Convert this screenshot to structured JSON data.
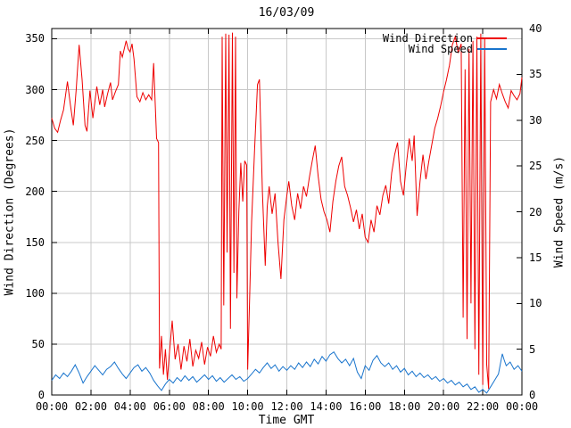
{
  "chart_data": {
    "type": "line",
    "title": "16/03/09",
    "xlabel": "Time GMT",
    "ylabel_left": "Wind Direction (Degrees)",
    "ylabel_right": "Wind Speed (m/s)",
    "xlim_hours": [
      0,
      24
    ],
    "ylim_left": [
      0,
      360
    ],
    "ylim_right": [
      0,
      40
    ],
    "grid": true,
    "legend_position": "top-right-inside",
    "grid_color": "#c8c8c8",
    "border_color": "#000000",
    "x_ticks": {
      "hours": [
        0,
        2,
        4,
        6,
        8,
        10,
        12,
        14,
        16,
        18,
        20,
        22,
        24
      ],
      "labels": [
        "00:00",
        "02:00",
        "04:00",
        "06:00",
        "08:00",
        "10:00",
        "12:00",
        "14:00",
        "16:00",
        "18:00",
        "20:00",
        "22:00",
        "00:00"
      ]
    },
    "y_ticks_left": [
      0,
      50,
      100,
      150,
      200,
      250,
      300,
      350
    ],
    "y_ticks_right": [
      0,
      5,
      10,
      15,
      20,
      25,
      30,
      35,
      40
    ],
    "series": [
      {
        "name": "Wind Direction",
        "axis": "left",
        "unit": "degrees",
        "color": "#ee0000",
        "points": [
          [
            0.0,
            272
          ],
          [
            0.15,
            262
          ],
          [
            0.3,
            258
          ],
          [
            0.45,
            270
          ],
          [
            0.6,
            280
          ],
          [
            0.8,
            308
          ],
          [
            0.95,
            285
          ],
          [
            1.1,
            265
          ],
          [
            1.25,
            300
          ],
          [
            1.4,
            344
          ],
          [
            1.55,
            310
          ],
          [
            1.7,
            265
          ],
          [
            1.8,
            259
          ],
          [
            1.95,
            299
          ],
          [
            2.1,
            272
          ],
          [
            2.3,
            303
          ],
          [
            2.45,
            285
          ],
          [
            2.6,
            300
          ],
          [
            2.7,
            283
          ],
          [
            2.85,
            296
          ],
          [
            3.0,
            307
          ],
          [
            3.1,
            290
          ],
          [
            3.25,
            298
          ],
          [
            3.4,
            305
          ],
          [
            3.5,
            338
          ],
          [
            3.6,
            332
          ],
          [
            3.8,
            348
          ],
          [
            3.9,
            340
          ],
          [
            4.0,
            337
          ],
          [
            4.1,
            345
          ],
          [
            4.2,
            330
          ],
          [
            4.35,
            293
          ],
          [
            4.5,
            288
          ],
          [
            4.65,
            297
          ],
          [
            4.8,
            290
          ],
          [
            4.95,
            295
          ],
          [
            5.1,
            290
          ],
          [
            5.2,
            326
          ],
          [
            5.35,
            252
          ],
          [
            5.45,
            248
          ],
          [
            5.5,
            26
          ],
          [
            5.6,
            58
          ],
          [
            5.7,
            20
          ],
          [
            5.8,
            45
          ],
          [
            5.9,
            15
          ],
          [
            6.0,
            40
          ],
          [
            6.15,
            73
          ],
          [
            6.3,
            35
          ],
          [
            6.45,
            50
          ],
          [
            6.6,
            25
          ],
          [
            6.75,
            48
          ],
          [
            6.9,
            33
          ],
          [
            7.05,
            55
          ],
          [
            7.2,
            28
          ],
          [
            7.35,
            44
          ],
          [
            7.5,
            36
          ],
          [
            7.65,
            52
          ],
          [
            7.8,
            30
          ],
          [
            7.95,
            47
          ],
          [
            8.1,
            38
          ],
          [
            8.25,
            58
          ],
          [
            8.4,
            42
          ],
          [
            8.55,
            50
          ],
          [
            8.65,
            45
          ],
          [
            8.7,
            352
          ],
          [
            8.78,
            88
          ],
          [
            8.88,
            355
          ],
          [
            8.95,
            140
          ],
          [
            9.05,
            354
          ],
          [
            9.12,
            65
          ],
          [
            9.22,
            356
          ],
          [
            9.3,
            120
          ],
          [
            9.38,
            352
          ],
          [
            9.45,
            95
          ],
          [
            9.55,
            180
          ],
          [
            9.65,
            228
          ],
          [
            9.75,
            190
          ],
          [
            9.85,
            230
          ],
          [
            9.95,
            226
          ],
          [
            10.0,
            25
          ],
          [
            10.1,
            95
          ],
          [
            10.2,
            170
          ],
          [
            10.35,
            240
          ],
          [
            10.5,
            305
          ],
          [
            10.6,
            310
          ],
          [
            10.75,
            200
          ],
          [
            10.9,
            127
          ],
          [
            11.0,
            185
          ],
          [
            11.1,
            205
          ],
          [
            11.25,
            178
          ],
          [
            11.4,
            198
          ],
          [
            11.55,
            150
          ],
          [
            11.7,
            114
          ],
          [
            11.85,
            172
          ],
          [
            12.0,
            196
          ],
          [
            12.1,
            210
          ],
          [
            12.25,
            186
          ],
          [
            12.4,
            172
          ],
          [
            12.55,
            198
          ],
          [
            12.7,
            183
          ],
          [
            12.85,
            205
          ],
          [
            13.0,
            195
          ],
          [
            13.15,
            214
          ],
          [
            13.3,
            230
          ],
          [
            13.45,
            245
          ],
          [
            13.6,
            215
          ],
          [
            13.75,
            192
          ],
          [
            13.9,
            180
          ],
          [
            14.05,
            172
          ],
          [
            14.2,
            160
          ],
          [
            14.35,
            190
          ],
          [
            14.5,
            210
          ],
          [
            14.65,
            225
          ],
          [
            14.8,
            234
          ],
          [
            14.95,
            205
          ],
          [
            15.1,
            196
          ],
          [
            15.25,
            184
          ],
          [
            15.4,
            170
          ],
          [
            15.55,
            182
          ],
          [
            15.7,
            163
          ],
          [
            15.85,
            178
          ],
          [
            16.0,
            155
          ],
          [
            16.15,
            150
          ],
          [
            16.3,
            172
          ],
          [
            16.45,
            160
          ],
          [
            16.6,
            186
          ],
          [
            16.75,
            177
          ],
          [
            16.9,
            196
          ],
          [
            17.05,
            206
          ],
          [
            17.2,
            188
          ],
          [
            17.35,
            218
          ],
          [
            17.5,
            236
          ],
          [
            17.65,
            248
          ],
          [
            17.8,
            210
          ],
          [
            17.95,
            196
          ],
          [
            18.1,
            226
          ],
          [
            18.25,
            252
          ],
          [
            18.4,
            230
          ],
          [
            18.5,
            255
          ],
          [
            18.65,
            176
          ],
          [
            18.8,
            210
          ],
          [
            18.95,
            236
          ],
          [
            19.1,
            212
          ],
          [
            19.25,
            230
          ],
          [
            19.4,
            246
          ],
          [
            19.55,
            262
          ],
          [
            19.7,
            272
          ],
          [
            19.85,
            284
          ],
          [
            20.0,
            298
          ],
          [
            20.15,
            310
          ],
          [
            20.3,
            324
          ],
          [
            20.45,
            344
          ],
          [
            20.6,
            352
          ],
          [
            20.75,
            336
          ],
          [
            20.9,
            345
          ],
          [
            21.0,
            76
          ],
          [
            21.1,
            320
          ],
          [
            21.2,
            55
          ],
          [
            21.3,
            340
          ],
          [
            21.4,
            90
          ],
          [
            21.5,
            348
          ],
          [
            21.6,
            45
          ],
          [
            21.7,
            352
          ],
          [
            21.8,
            20
          ],
          [
            21.9,
            355
          ],
          [
            22.0,
            10
          ],
          [
            22.1,
            350
          ],
          [
            22.2,
            30
          ],
          [
            22.3,
            6
          ],
          [
            22.4,
            288
          ],
          [
            22.55,
            300
          ],
          [
            22.7,
            291
          ],
          [
            22.85,
            305
          ],
          [
            23.0,
            296
          ],
          [
            23.15,
            288
          ],
          [
            23.3,
            282
          ],
          [
            23.45,
            299
          ],
          [
            23.6,
            294
          ],
          [
            23.75,
            290
          ],
          [
            23.9,
            296
          ],
          [
            24.0,
            312
          ]
        ]
      },
      {
        "name": "Wind Speed",
        "axis": "right",
        "unit": "m/s",
        "color": "#1874cd",
        "points": [
          [
            0.0,
            1.6
          ],
          [
            0.2,
            2.2
          ],
          [
            0.4,
            1.8
          ],
          [
            0.6,
            2.4
          ],
          [
            0.8,
            2.0
          ],
          [
            1.0,
            2.6
          ],
          [
            1.2,
            3.3
          ],
          [
            1.4,
            2.4
          ],
          [
            1.6,
            1.3
          ],
          [
            1.8,
            2.0
          ],
          [
            2.0,
            2.6
          ],
          [
            2.2,
            3.2
          ],
          [
            2.4,
            2.7
          ],
          [
            2.6,
            2.2
          ],
          [
            2.8,
            2.8
          ],
          [
            3.0,
            3.1
          ],
          [
            3.2,
            3.6
          ],
          [
            3.4,
            2.9
          ],
          [
            3.6,
            2.3
          ],
          [
            3.8,
            1.8
          ],
          [
            4.0,
            2.4
          ],
          [
            4.2,
            3.0
          ],
          [
            4.4,
            3.3
          ],
          [
            4.6,
            2.6
          ],
          [
            4.8,
            3.0
          ],
          [
            5.0,
            2.4
          ],
          [
            5.2,
            1.6
          ],
          [
            5.4,
            1.0
          ],
          [
            5.6,
            0.5
          ],
          [
            5.8,
            1.2
          ],
          [
            6.0,
            1.7
          ],
          [
            6.2,
            1.3
          ],
          [
            6.4,
            1.9
          ],
          [
            6.6,
            1.5
          ],
          [
            6.8,
            2.1
          ],
          [
            7.0,
            1.6
          ],
          [
            7.2,
            2.0
          ],
          [
            7.4,
            1.4
          ],
          [
            7.6,
            1.8
          ],
          [
            7.8,
            2.2
          ],
          [
            8.0,
            1.7
          ],
          [
            8.2,
            2.1
          ],
          [
            8.4,
            1.5
          ],
          [
            8.6,
            1.9
          ],
          [
            8.8,
            1.4
          ],
          [
            9.0,
            1.8
          ],
          [
            9.2,
            2.2
          ],
          [
            9.4,
            1.7
          ],
          [
            9.6,
            2.0
          ],
          [
            9.8,
            1.5
          ],
          [
            10.0,
            1.8
          ],
          [
            10.2,
            2.3
          ],
          [
            10.4,
            2.8
          ],
          [
            10.6,
            2.4
          ],
          [
            10.8,
            3.0
          ],
          [
            11.0,
            3.5
          ],
          [
            11.2,
            2.9
          ],
          [
            11.4,
            3.3
          ],
          [
            11.6,
            2.6
          ],
          [
            11.8,
            3.1
          ],
          [
            12.0,
            2.7
          ],
          [
            12.2,
            3.2
          ],
          [
            12.4,
            2.8
          ],
          [
            12.6,
            3.5
          ],
          [
            12.8,
            3.0
          ],
          [
            13.0,
            3.6
          ],
          [
            13.2,
            3.1
          ],
          [
            13.4,
            3.9
          ],
          [
            13.6,
            3.4
          ],
          [
            13.8,
            4.2
          ],
          [
            14.0,
            3.7
          ],
          [
            14.2,
            4.4
          ],
          [
            14.4,
            4.7
          ],
          [
            14.6,
            4.0
          ],
          [
            14.8,
            3.5
          ],
          [
            15.0,
            3.9
          ],
          [
            15.2,
            3.2
          ],
          [
            15.4,
            4.0
          ],
          [
            15.6,
            2.5
          ],
          [
            15.8,
            1.8
          ],
          [
            16.0,
            3.2
          ],
          [
            16.2,
            2.7
          ],
          [
            16.4,
            3.8
          ],
          [
            16.6,
            4.3
          ],
          [
            16.8,
            3.5
          ],
          [
            17.0,
            3.1
          ],
          [
            17.2,
            3.5
          ],
          [
            17.4,
            2.8
          ],
          [
            17.6,
            3.2
          ],
          [
            17.8,
            2.5
          ],
          [
            18.0,
            2.9
          ],
          [
            18.2,
            2.2
          ],
          [
            18.4,
            2.6
          ],
          [
            18.6,
            2.0
          ],
          [
            18.8,
            2.4
          ],
          [
            19.0,
            1.9
          ],
          [
            19.2,
            2.2
          ],
          [
            19.4,
            1.7
          ],
          [
            19.6,
            2.0
          ],
          [
            19.8,
            1.5
          ],
          [
            20.0,
            1.8
          ],
          [
            20.2,
            1.3
          ],
          [
            20.4,
            1.6
          ],
          [
            20.6,
            1.1
          ],
          [
            20.8,
            1.4
          ],
          [
            21.0,
            0.9
          ],
          [
            21.2,
            1.2
          ],
          [
            21.4,
            0.6
          ],
          [
            21.6,
            0.9
          ],
          [
            21.8,
            0.3
          ],
          [
            22.0,
            0.6
          ],
          [
            22.2,
            0.2
          ],
          [
            22.4,
            0.9
          ],
          [
            22.6,
            1.6
          ],
          [
            22.8,
            2.3
          ],
          [
            23.0,
            4.5
          ],
          [
            23.1,
            3.8
          ],
          [
            23.2,
            3.2
          ],
          [
            23.4,
            3.6
          ],
          [
            23.6,
            2.8
          ],
          [
            23.8,
            3.2
          ],
          [
            24.0,
            2.6
          ]
        ]
      }
    ]
  }
}
